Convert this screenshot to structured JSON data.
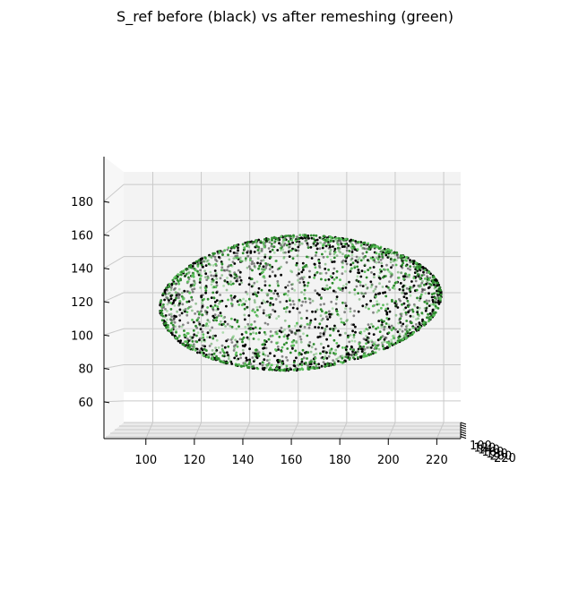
{
  "chart_data": {
    "type": "scatter",
    "projection": "3d",
    "title": "S_ref before (black) vs after remeshing (green)",
    "xlabel": "",
    "ylabel": "",
    "zlabel": "",
    "x_ticks": [
      "100",
      "120",
      "140",
      "160",
      "180",
      "200",
      "220"
    ],
    "z_ticks": [
      "60",
      "80",
      "100",
      "120",
      "140",
      "160",
      "180"
    ],
    "y_ticks": [
      "100",
      "120",
      "140",
      "160",
      "180",
      "200",
      "220"
    ],
    "xlim": [
      88,
      227
    ],
    "zlim": [
      48,
      187
    ],
    "view": "elevation 0, looking along the y axis",
    "grid": true,
    "series": [
      {
        "color": "#000000",
        "marker_size": 1.4,
        "point_count": 1300,
        "surface": "closed ellipsoidal shell",
        "x_range": [
          102,
          220
        ],
        "z_range": [
          77,
          152
        ]
      },
      {
        "color": "#2e8b2e",
        "marker_size": 1.4,
        "point_count": 1300,
        "surface": "closed ellipsoidal shell",
        "x_range": [
          102,
          220
        ],
        "z_range": [
          77,
          152
        ]
      }
    ]
  }
}
